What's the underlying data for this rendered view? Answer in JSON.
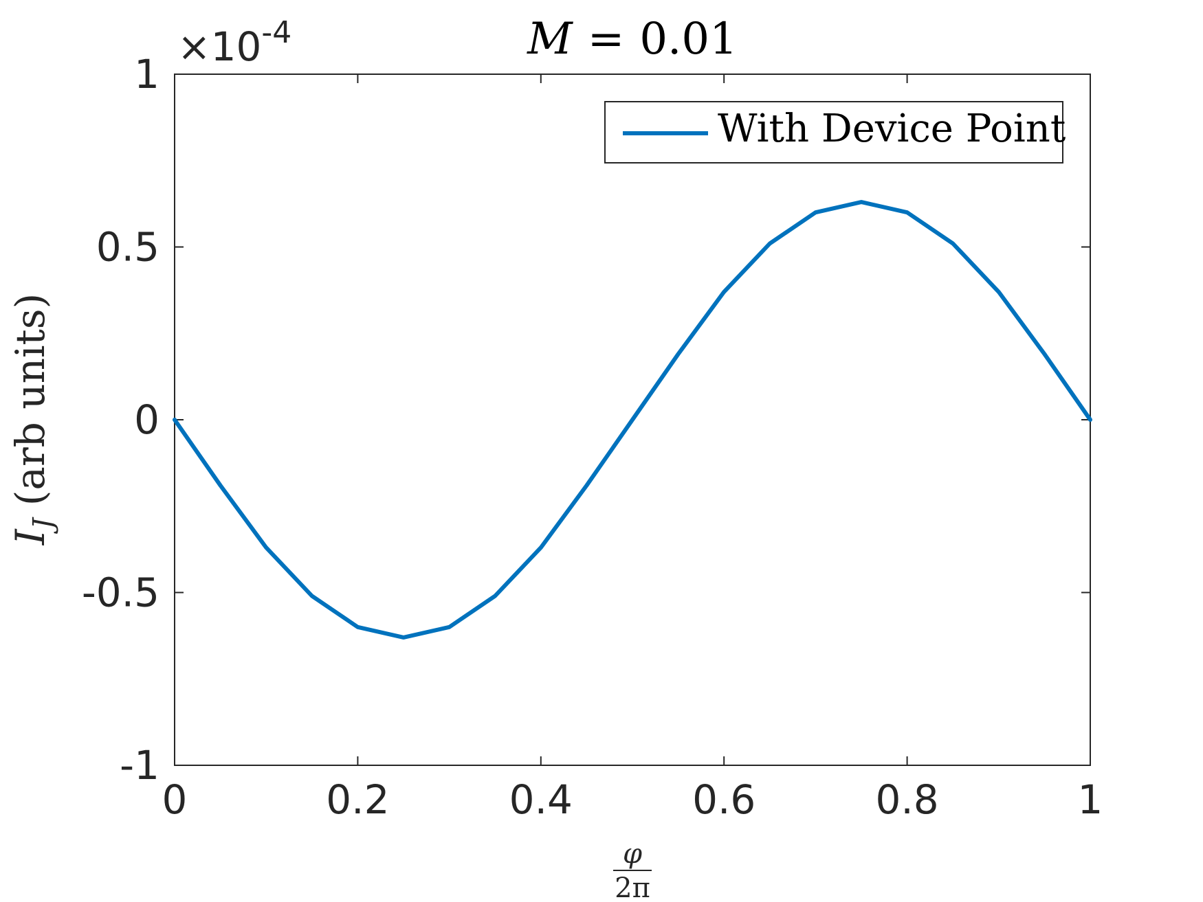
{
  "chart_data": {
    "type": "line",
    "title_var": "M",
    "title_eq": "=",
    "title_value": "0.01",
    "xlabel_num": "φ",
    "xlabel_den": "2π",
    "ylabel_var": "I",
    "ylabel_sub": "J",
    "ylabel_units": "(arb units)",
    "exponent_prefix": "×10",
    "exponent_power": "-4",
    "xlim": [
      0,
      1
    ],
    "ylim": [
      -1,
      1
    ],
    "x_ticks": [
      "0",
      "0.2",
      "0.4",
      "0.6",
      "0.8",
      "1"
    ],
    "x_tick_values": [
      0,
      0.2,
      0.4,
      0.6,
      0.8,
      1
    ],
    "y_ticks": [
      "-1",
      "-0.5",
      "0",
      "0.5",
      "1"
    ],
    "y_tick_values": [
      -1,
      -0.5,
      0,
      0.5,
      1
    ],
    "scale_note": "y values in units of 1e-4",
    "legend_position": "top-right",
    "grid": false,
    "series": [
      {
        "name": "With Device Point",
        "color": "#0072BD",
        "x": [
          0,
          0.05,
          0.1,
          0.15,
          0.2,
          0.25,
          0.3,
          0.35,
          0.4,
          0.45,
          0.5,
          0.55,
          0.6,
          0.65,
          0.7,
          0.75,
          0.8,
          0.85,
          0.9,
          0.95,
          1
        ],
        "y": [
          0,
          -0.19,
          -0.37,
          -0.51,
          -0.6,
          -0.63,
          -0.6,
          -0.51,
          -0.37,
          -0.19,
          0,
          0.19,
          0.37,
          0.51,
          0.6,
          0.63,
          0.6,
          0.51,
          0.37,
          0.19,
          0
        ]
      }
    ]
  }
}
